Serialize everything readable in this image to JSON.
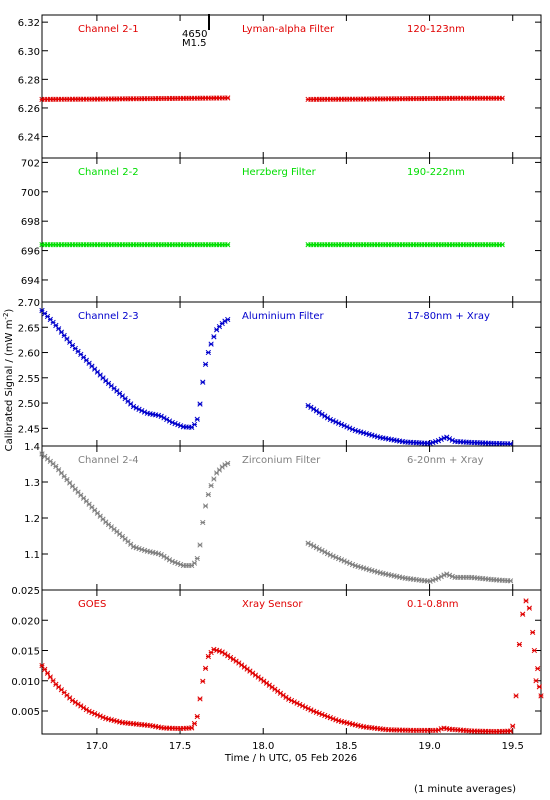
{
  "figure": {
    "ylabel": "Calibrated Signal / (mW m",
    "ylabel_sup": "-2",
    "ylabel_end": ")",
    "xlabel": "Time / h UTC, 05 Feb 2026",
    "footnote": "(1 minute averages)",
    "marker": {
      "line1": "4650",
      "line2": "M1.5"
    }
  },
  "chart_data": [
    {
      "type": "scatter",
      "channel": "Channel 2-1",
      "filter": "Lyman-alpha Filter",
      "band": "120-123nm",
      "color": "#e00000",
      "xlim": [
        16.67,
        19.67
      ],
      "ylim": [
        6.225,
        6.325
      ],
      "yticks": [
        6.24,
        6.26,
        6.28,
        6.3,
        6.32
      ],
      "ytick_labels": [
        "6.24",
        "6.26",
        "6.28",
        "6.30",
        "6.32"
      ],
      "segments": [
        {
          "x_start": 16.67,
          "x_end": 17.8,
          "points": [
            [
              16.67,
              6.266
            ],
            [
              17.0,
              6.2662
            ],
            [
              17.3,
              6.2665
            ],
            [
              17.6,
              6.2668
            ],
            [
              17.8,
              6.267
            ]
          ]
        },
        {
          "x_start": 18.27,
          "x_end": 19.45,
          "points": [
            [
              18.27,
              6.266
            ],
            [
              18.6,
              6.2662
            ],
            [
              18.9,
              6.2665
            ],
            [
              19.2,
              6.2668
            ],
            [
              19.45,
              6.2668
            ]
          ]
        }
      ]
    },
    {
      "type": "scatter",
      "channel": "Channel 2-2",
      "filter": "Herzberg Filter",
      "band": "190-222nm",
      "color": "#00dd00",
      "xlim": [
        16.67,
        19.67
      ],
      "ylim": [
        692.5,
        702.3
      ],
      "yticks": [
        694,
        696,
        698,
        700,
        702
      ],
      "ytick_labels": [
        "694",
        "696",
        "698",
        "700",
        "702"
      ],
      "segments": [
        {
          "x_start": 16.67,
          "x_end": 17.8,
          "points": [
            [
              16.67,
              696.4
            ],
            [
              17.8,
              696.4
            ]
          ]
        },
        {
          "x_start": 18.27,
          "x_end": 19.45,
          "points": [
            [
              18.27,
              696.4
            ],
            [
              19.45,
              696.4
            ]
          ]
        }
      ]
    },
    {
      "type": "scatter",
      "channel": "Channel 2-3",
      "filter": "Aluminium Filter",
      "band": "17-80nm + Xray",
      "color": "#0000cc",
      "xlim": [
        16.67,
        19.67
      ],
      "ylim": [
        2.415,
        2.7
      ],
      "yticks": [
        2.45,
        2.5,
        2.55,
        2.6,
        2.65,
        2.7
      ],
      "ytick_labels": [
        "2.45",
        "2.50",
        "2.55",
        "2.60",
        "2.65",
        "2.70"
      ],
      "segments": [
        {
          "x_start": 16.67,
          "x_end": 17.8,
          "points": [
            [
              16.67,
              2.683
            ],
            [
              16.75,
              2.655
            ],
            [
              16.85,
              2.615
            ],
            [
              16.95,
              2.58
            ],
            [
              17.05,
              2.545
            ],
            [
              17.15,
              2.515
            ],
            [
              17.22,
              2.493
            ],
            [
              17.3,
              2.48
            ],
            [
              17.38,
              2.475
            ],
            [
              17.45,
              2.462
            ],
            [
              17.52,
              2.453
            ],
            [
              17.57,
              2.452
            ],
            [
              17.6,
              2.462
            ],
            [
              17.62,
              2.498
            ],
            [
              17.64,
              2.55
            ],
            [
              17.66,
              2.59
            ],
            [
              17.69,
              2.62
            ],
            [
              17.72,
              2.645
            ],
            [
              17.76,
              2.66
            ],
            [
              17.8,
              2.668
            ]
          ]
        },
        {
          "x_start": 18.27,
          "x_end": 19.5,
          "points": [
            [
              18.27,
              2.495
            ],
            [
              18.4,
              2.468
            ],
            [
              18.55,
              2.446
            ],
            [
              18.7,
              2.432
            ],
            [
              18.85,
              2.423
            ],
            [
              19.0,
              2.42
            ],
            [
              19.05,
              2.425
            ],
            [
              19.1,
              2.433
            ],
            [
              19.15,
              2.424
            ],
            [
              19.25,
              2.422
            ],
            [
              19.4,
              2.42
            ],
            [
              19.5,
              2.419
            ]
          ]
        }
      ]
    },
    {
      "type": "scatter",
      "channel": "Channel 2-4",
      "filter": "Zirconium Filter",
      "band": "6-20nm + Xray",
      "color": "#808080",
      "xlim": [
        16.67,
        19.67
      ],
      "ylim": [
        1.0,
        1.4
      ],
      "yticks": [
        1.1,
        1.2,
        1.3,
        1.4
      ],
      "ytick_labels": [
        "1.1",
        "1.2",
        "1.3",
        "1.4"
      ],
      "segments": [
        {
          "x_start": 16.67,
          "x_end": 17.8,
          "points": [
            [
              16.67,
              1.378
            ],
            [
              16.75,
              1.345
            ],
            [
              16.85,
              1.29
            ],
            [
              16.95,
              1.24
            ],
            [
              17.05,
              1.19
            ],
            [
              17.15,
              1.15
            ],
            [
              17.22,
              1.12
            ],
            [
              17.3,
              1.108
            ],
            [
              17.38,
              1.1
            ],
            [
              17.45,
              1.08
            ],
            [
              17.52,
              1.068
            ],
            [
              17.57,
              1.068
            ],
            [
              17.6,
              1.08
            ],
            [
              17.62,
              1.125
            ],
            [
              17.64,
              1.2
            ],
            [
              17.66,
              1.25
            ],
            [
              17.69,
              1.295
            ],
            [
              17.72,
              1.325
            ],
            [
              17.76,
              1.345
            ],
            [
              17.8,
              1.355
            ]
          ]
        },
        {
          "x_start": 18.27,
          "x_end": 19.5,
          "points": [
            [
              18.27,
              1.13
            ],
            [
              18.4,
              1.098
            ],
            [
              18.55,
              1.068
            ],
            [
              18.7,
              1.048
            ],
            [
              18.85,
              1.033
            ],
            [
              19.0,
              1.024
            ],
            [
              19.05,
              1.032
            ],
            [
              19.1,
              1.045
            ],
            [
              19.15,
              1.035
            ],
            [
              19.25,
              1.035
            ],
            [
              19.4,
              1.028
            ],
            [
              19.5,
              1.025
            ]
          ]
        }
      ]
    },
    {
      "type": "scatter",
      "channel": "GOES",
      "filter": "Xray Sensor",
      "band": "0.1-0.8nm",
      "color": "#e00000",
      "xlim": [
        16.67,
        19.67
      ],
      "ylim": [
        0.0012,
        0.025
      ],
      "yticks": [
        0.005,
        0.01,
        0.015,
        0.02,
        0.025
      ],
      "ytick_labels": [
        "0.005",
        "0.010",
        "0.015",
        "0.020",
        "0.025"
      ],
      "xticks": [
        17.0,
        17.5,
        18.0,
        18.5,
        19.0,
        19.5
      ],
      "xtick_labels": [
        "17.0",
        "17.5",
        "18.0",
        "18.5",
        "19.0",
        "19.5"
      ],
      "segments": [
        {
          "x_start": 16.67,
          "x_end": 19.5,
          "points": [
            [
              16.67,
              0.0125
            ],
            [
              16.75,
              0.0095
            ],
            [
              16.85,
              0.0068
            ],
            [
              16.95,
              0.005
            ],
            [
              17.05,
              0.0038
            ],
            [
              17.15,
              0.0031
            ],
            [
              17.25,
              0.0028
            ],
            [
              17.32,
              0.0026
            ],
            [
              17.4,
              0.0022
            ],
            [
              17.5,
              0.0021
            ],
            [
              17.57,
              0.0022
            ],
            [
              17.6,
              0.0035
            ],
            [
              17.62,
              0.007
            ],
            [
              17.64,
              0.0105
            ],
            [
              17.67,
              0.014
            ],
            [
              17.7,
              0.0152
            ],
            [
              17.75,
              0.0148
            ],
            [
              17.85,
              0.013
            ],
            [
              17.95,
              0.011
            ],
            [
              18.05,
              0.009
            ],
            [
              18.15,
              0.007
            ],
            [
              18.3,
              0.005
            ],
            [
              18.45,
              0.0034
            ],
            [
              18.6,
              0.0024
            ],
            [
              18.75,
              0.0019
            ],
            [
              18.9,
              0.0018
            ],
            [
              19.05,
              0.0018
            ],
            [
              19.08,
              0.0022
            ],
            [
              19.12,
              0.002
            ],
            [
              19.25,
              0.0017
            ],
            [
              19.4,
              0.0016
            ],
            [
              19.5,
              0.0017
            ]
          ]
        }
      ],
      "extra_points": [
        [
          19.5,
          0.0025
        ],
        [
          19.52,
          0.0075
        ],
        [
          19.54,
          0.016
        ],
        [
          19.56,
          0.021
        ],
        [
          19.58,
          0.0232
        ],
        [
          19.6,
          0.022
        ],
        [
          19.62,
          0.018
        ],
        [
          19.63,
          0.015
        ],
        [
          19.64,
          0.01
        ],
        [
          19.65,
          0.012
        ],
        [
          19.66,
          0.009
        ],
        [
          19.67,
          0.0075
        ]
      ]
    }
  ]
}
